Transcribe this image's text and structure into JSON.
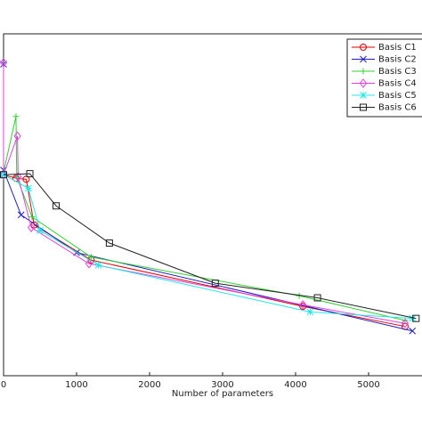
{
  "chart_data": {
    "type": "line",
    "x_label": "Number of parameters",
    "xlim": [
      0,
      5700
    ],
    "xticks": [
      0,
      1000,
      2000,
      3000,
      4000,
      5000
    ],
    "ylim": [
      0,
      6.8
    ],
    "legend": "upper right",
    "series": [
      {
        "name": "Basis C1",
        "color": "#e00000",
        "marker": "circle",
        "x": [
          0,
          170,
          310,
          420,
          1200,
          4100,
          5500
        ],
        "values": [
          4.0,
          3.93,
          3.91,
          3.0,
          2.3,
          1.38,
          0.98
        ]
      },
      {
        "name": "Basis C2",
        "color": "#2020c0",
        "marker": "x",
        "x": [
          0,
          0,
          240,
          1000,
          5600
        ],
        "values": [
          6.2,
          4.09,
          3.2,
          2.45,
          0.89
        ]
      },
      {
        "name": "Basis C3",
        "color": "#30d030",
        "marker": "plus",
        "x": [
          0,
          170,
          180,
          390,
          1200,
          4050,
          5500
        ],
        "values": [
          4.05,
          5.16,
          3.96,
          3.16,
          2.36,
          1.59,
          1.1
        ]
      },
      {
        "name": "Basis C4",
        "color": "#e040e0",
        "marker": "diamond",
        "x": [
          0,
          0,
          190,
          200,
          380,
          1170,
          4100,
          5500
        ],
        "values": [
          6.23,
          4.0,
          4.77,
          3.96,
          2.95,
          2.23,
          1.41,
          1.04
        ]
      },
      {
        "name": "Basis C5",
        "color": "#20e8e8",
        "marker": "star",
        "x": [
          0,
          340,
          500,
          1300,
          4200,
          5600
        ],
        "values": [
          4.0,
          3.73,
          2.89,
          2.2,
          1.27,
          1.14
        ]
      },
      {
        "name": "Basis C6",
        "color": "#202020",
        "marker": "square",
        "x": [
          0,
          360,
          720,
          1450,
          2900,
          4300,
          5650
        ],
        "values": [
          4.0,
          4.02,
          3.38,
          2.64,
          1.84,
          1.55,
          1.14
        ]
      }
    ]
  }
}
